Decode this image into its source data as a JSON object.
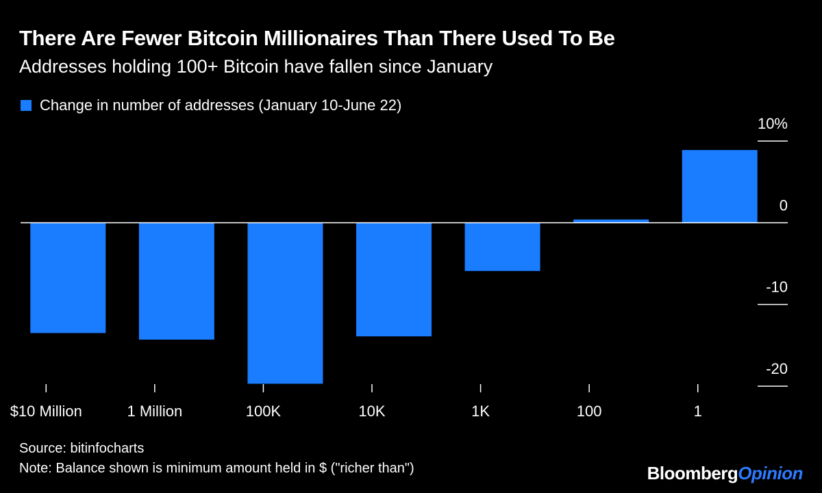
{
  "title": "There Are Fewer Bitcoin Millionaires Than There Used To Be",
  "subtitle": "Addresses holding 100+ Bitcoin have fallen since January",
  "footer": {
    "source": "Source: bitinfocharts",
    "note": "Note: Balance shown is minimum amount held in $ (\"richer than\")"
  },
  "brand": {
    "primary": "Bloomberg",
    "accent": "Opinion"
  },
  "colors": {
    "background": "#000000",
    "bar": "#1a7cff",
    "text": "#ffffff",
    "brand_accent": "#2c7bff"
  },
  "chart_data": {
    "type": "bar",
    "categories": [
      "$10 Million",
      "1 Million",
      "100K",
      "10K",
      "1K",
      "100",
      "1"
    ],
    "series": [
      {
        "name": "Change in number of addresses (January 10-June 22)",
        "values": [
          -13.5,
          -14.3,
          -19.7,
          -13.9,
          -5.9,
          0.4,
          8.9
        ]
      }
    ],
    "ylim": [
      -20.5,
      10.5
    ],
    "yticks": [
      10,
      0,
      -10,
      -20
    ],
    "ytick_labels": [
      "10%",
      "0",
      "-10",
      "-20"
    ],
    "legend_position": "top-left",
    "y_axis_side": "right",
    "grid": false
  }
}
